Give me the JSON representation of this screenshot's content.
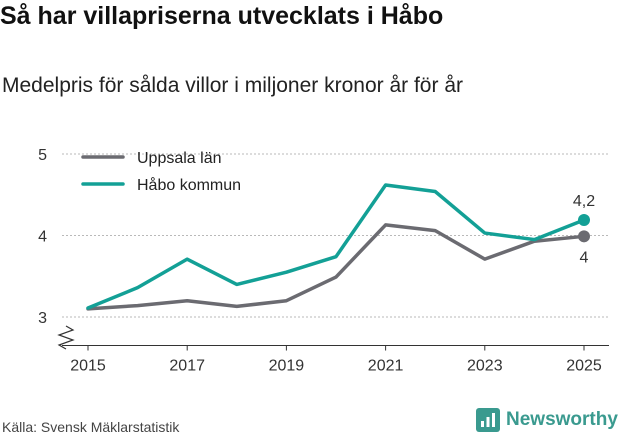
{
  "chart_data": {
    "type": "line",
    "title": "Så har villapriserna utvecklats i Håbo",
    "subtitle": "Medelpris för sålda villor i miljoner kronor år för år",
    "x": [
      2015,
      2016,
      2017,
      2018,
      2019,
      2020,
      2021,
      2022,
      2023,
      2024,
      2025
    ],
    "x_tick_labels": [
      "2015",
      "2017",
      "2019",
      "2021",
      "2023",
      "2025"
    ],
    "y_tick_labels": [
      "3",
      "4",
      "5"
    ],
    "ylim": [
      2.65,
      5.05
    ],
    "y_break": true,
    "legend_position": "top-left",
    "series": [
      {
        "name": "Uppsala län",
        "color": "#6b6b71",
        "values": [
          3.1,
          3.14,
          3.2,
          3.13,
          3.2,
          3.49,
          4.13,
          4.06,
          3.71,
          3.93,
          3.99
        ],
        "end_label": "4"
      },
      {
        "name": "Håbo kommun",
        "color": "#13a096",
        "values": [
          3.11,
          3.36,
          3.71,
          3.4,
          3.55,
          3.74,
          4.62,
          4.54,
          4.03,
          3.95,
          4.19
        ],
        "end_label": "4,2"
      }
    ]
  },
  "source": "Källa: Svensk Mäklarstatistik",
  "brand": "Newsworthy"
}
